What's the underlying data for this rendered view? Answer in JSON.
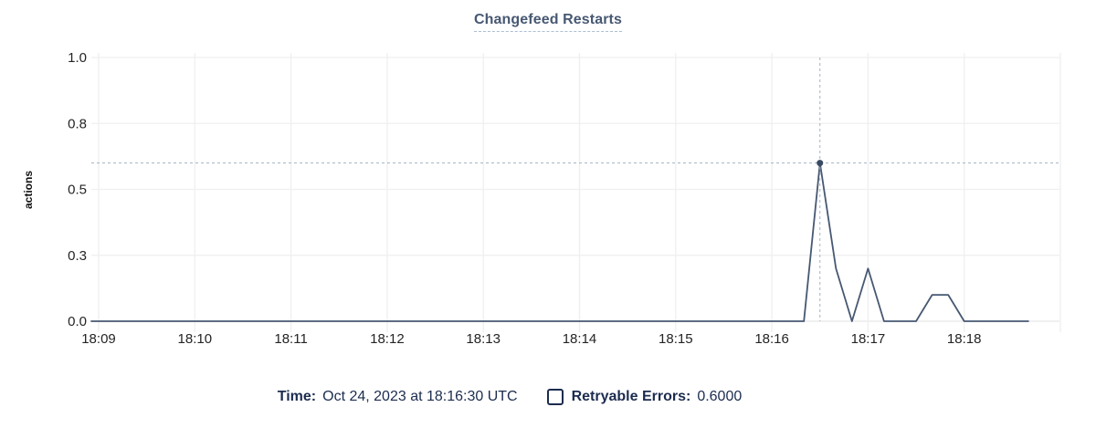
{
  "title": "Changefeed Restarts",
  "axes": {
    "y_label": "actions",
    "y_ticks": [
      {
        "value": 0,
        "label": "0.0"
      },
      {
        "value": 0.25,
        "label": "0.3"
      },
      {
        "value": 0.5,
        "label": "0.5"
      },
      {
        "value": 0.75,
        "label": "0.8"
      },
      {
        "value": 1.0,
        "label": "1.0"
      }
    ],
    "x_ticks": [
      "18:09",
      "18:10",
      "18:11",
      "18:12",
      "18:13",
      "18:14",
      "18:15",
      "18:16",
      "18:17",
      "18:18"
    ]
  },
  "chart_data": {
    "type": "line",
    "title": "Changefeed Restarts",
    "xlabel": "",
    "ylabel": "actions",
    "ylim": [
      0,
      1.0
    ],
    "x_tick_labels": [
      "18:09",
      "18:10",
      "18:11",
      "18:12",
      "18:13",
      "18:14",
      "18:15",
      "18:16",
      "18:17",
      "18:18"
    ],
    "y_tick_labels": [
      "0.0",
      "0.3",
      "0.5",
      "0.8",
      "1.0"
    ],
    "grid": true,
    "legend_position": "bottom",
    "series": [
      {
        "name": "Retryable Errors",
        "color": "#475872",
        "points": [
          [
            "18:09:00",
            0
          ],
          [
            "18:16:20",
            0
          ],
          [
            "18:16:30",
            0.6
          ],
          [
            "18:16:40",
            0.2
          ],
          [
            "18:16:50",
            0
          ],
          [
            "18:17:00",
            0.2
          ],
          [
            "18:17:10",
            0
          ],
          [
            "18:17:30",
            0
          ],
          [
            "18:17:40",
            0.1
          ],
          [
            "18:17:50",
            0.1
          ],
          [
            "18:18:00",
            0
          ],
          [
            "18:18:40",
            0
          ]
        ]
      }
    ],
    "hover": {
      "time": "18:16:30",
      "value": 0.6,
      "crosshair": true
    }
  },
  "footer": {
    "time_label": "Time:",
    "time_value": "Oct 24, 2023 at 18:16:30 UTC",
    "legend": [
      {
        "label": "Retryable Errors:",
        "value": "0.6000",
        "checked": false
      }
    ]
  },
  "colors": {
    "title": "#475872",
    "line": "#475872",
    "grid": "#efefef",
    "baseline_grid": "#e7e7e7",
    "crosshair": "#a3b2c2",
    "dot": "#394a63",
    "tick_text": "#242424",
    "axis_label_text": "#111111",
    "footer_text": "#1c2c4f"
  }
}
